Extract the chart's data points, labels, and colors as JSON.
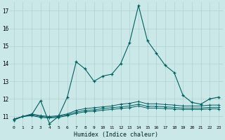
{
  "title": "",
  "xlabel": "Humidex (Indice chaleur)",
  "ylabel": "",
  "bg_color": "#cbe8e8",
  "grid_color": "#b0d0d0",
  "line_color": "#006060",
  "x_values": [
    0,
    1,
    2,
    3,
    4,
    5,
    6,
    7,
    8,
    9,
    10,
    11,
    12,
    13,
    14,
    15,
    16,
    17,
    18,
    19,
    20,
    21,
    22,
    23
  ],
  "series1": [
    10.8,
    11.0,
    11.1,
    11.9,
    10.6,
    11.0,
    12.1,
    14.1,
    13.7,
    13.0,
    13.3,
    13.4,
    14.0,
    15.2,
    17.3,
    15.3,
    14.6,
    13.9,
    13.5,
    12.2,
    11.8,
    11.7,
    12.0,
    12.1
  ],
  "series2": [
    10.85,
    11.0,
    11.15,
    11.05,
    11.0,
    11.05,
    11.15,
    11.35,
    11.45,
    11.5,
    11.55,
    11.6,
    11.7,
    11.75,
    11.85,
    11.72,
    11.72,
    11.68,
    11.65,
    11.6,
    11.6,
    11.6,
    11.65,
    11.65
  ],
  "series3": [
    10.85,
    11.0,
    11.1,
    11.0,
    10.95,
    11.0,
    11.1,
    11.25,
    11.35,
    11.38,
    11.45,
    11.5,
    11.55,
    11.6,
    11.7,
    11.58,
    11.58,
    11.55,
    11.52,
    11.48,
    11.48,
    11.48,
    11.52,
    11.52
  ],
  "series4": [
    10.85,
    11.0,
    11.05,
    10.95,
    10.92,
    10.95,
    11.05,
    11.18,
    11.27,
    11.3,
    11.36,
    11.4,
    11.46,
    11.5,
    11.6,
    11.48,
    11.48,
    11.45,
    11.43,
    11.4,
    11.4,
    11.4,
    11.43,
    11.43
  ],
  "ylim": [
    10.5,
    17.5
  ],
  "yticks": [
    11,
    12,
    13,
    14,
    15,
    16,
    17
  ],
  "xlim": [
    -0.5,
    23.5
  ],
  "xticks": [
    0,
    1,
    2,
    3,
    4,
    5,
    6,
    7,
    8,
    9,
    10,
    11,
    12,
    13,
    14,
    15,
    16,
    17,
    18,
    19,
    20,
    21,
    22,
    23
  ],
  "xtick_labels": [
    "0",
    "1",
    "2",
    "3",
    "4",
    "5",
    "6",
    "7",
    "8",
    "9",
    "10",
    "11",
    "12",
    "13",
    "14",
    "15",
    "16",
    "17",
    "18",
    "19",
    "20",
    "21",
    "22",
    "23"
  ]
}
